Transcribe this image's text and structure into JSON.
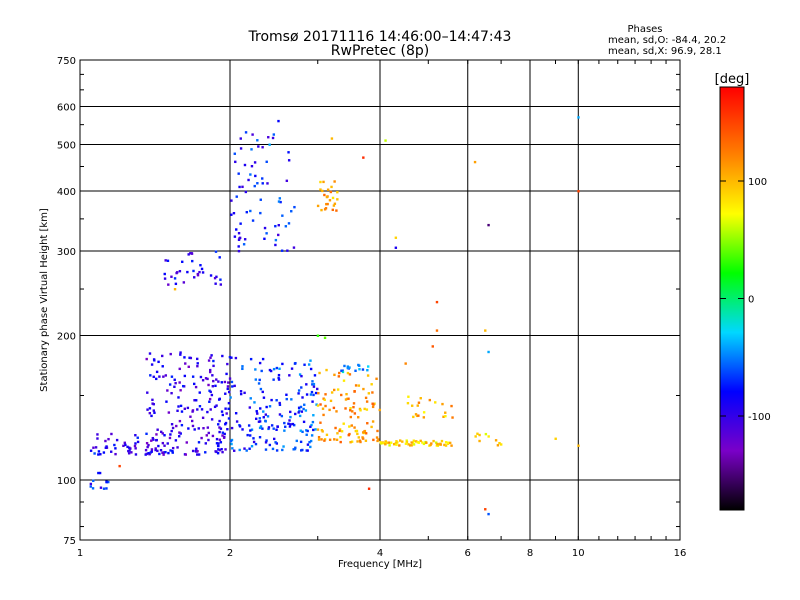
{
  "chart_data": {
    "type": "scatter",
    "title": "Tromsø 20171116 14:46:00–14:47:43",
    "subtitle": "RwPretec (8p)",
    "xlabel": "Frequency [MHz]",
    "ylabel": "Stationary phase Virtual Height [km]",
    "x_scale": "log",
    "y_scale": "log",
    "xlim": [
      1,
      16
    ],
    "ylim": [
      75,
      750
    ],
    "x_ticks": [
      1,
      2,
      4,
      6,
      8,
      10,
      16
    ],
    "x_tick_labels": [
      "1",
      "2",
      "4",
      "6",
      "8",
      "10",
      "16"
    ],
    "y_ticks": [
      75,
      100,
      200,
      300,
      400,
      500,
      600,
      750
    ],
    "y_tick_labels": [
      "75",
      "100",
      "200",
      "300",
      "400",
      "500",
      "600",
      "750"
    ],
    "grid": true,
    "stats": {
      "heading": "Phases",
      "line_o": "mean, sd,O: -84.4, 20.2",
      "line_x": "mean, sd,X:  96.9, 28.1"
    },
    "colorbar": {
      "unit": "[deg]",
      "range": [
        -180,
        180
      ],
      "tick_values": [
        100,
        0,
        -100
      ],
      "tick_labels": [
        "100",
        "0",
        "-100"
      ]
    },
    "clusters": [
      {
        "x": [
          1.05,
          1.15
        ],
        "y": [
          96,
          104
        ],
        "phase": -80,
        "n": 12
      },
      {
        "x": [
          1.05,
          1.4
        ],
        "y": [
          113,
          125
        ],
        "phase": -90,
        "n": 45
      },
      {
        "x": [
          1.35,
          2.0
        ],
        "y": [
          113,
          185
        ],
        "phase": -100,
        "n": 220
      },
      {
        "x": [
          1.45,
          1.95
        ],
        "y": [
          255,
          300
        ],
        "phase": -95,
        "n": 35
      },
      {
        "x": [
          2.0,
          2.7
        ],
        "y": [
          300,
          540
        ],
        "phase": -80,
        "n": 70
      },
      {
        "x": [
          2.0,
          3.0
        ],
        "y": [
          115,
          180
        ],
        "phase": -70,
        "n": 180
      },
      {
        "x": [
          3.0,
          3.3
        ],
        "y": [
          360,
          420
        ],
        "phase": 105,
        "n": 25
      },
      {
        "x": [
          3.0,
          4.0
        ],
        "y": [
          120,
          170
        ],
        "phase": 110,
        "n": 110
      },
      {
        "x": [
          3.3,
          3.8
        ],
        "y": [
          168,
          174
        ],
        "phase": -45,
        "n": 15
      },
      {
        "x": [
          4.0,
          5.6
        ],
        "y": [
          118,
          121
        ],
        "phase": 90,
        "n": 60
      },
      {
        "x": [
          4.5,
          5.6
        ],
        "y": [
          135,
          150
        ],
        "phase": 100,
        "n": 20
      },
      {
        "x": [
          6.2,
          7.0
        ],
        "y": [
          118,
          125
        ],
        "phase": 90,
        "n": 10
      }
    ],
    "points": [
      {
        "x": 1.2,
        "y": 107,
        "phase": 150
      },
      {
        "x": 3.8,
        "y": 96,
        "phase": 160
      },
      {
        "x": 5.2,
        "y": 235,
        "phase": 150
      },
      {
        "x": 5.2,
        "y": 205,
        "phase": 130
      },
      {
        "x": 6.5,
        "y": 205,
        "phase": 100
      },
      {
        "x": 6.6,
        "y": 185,
        "phase": -40
      },
      {
        "x": 6.6,
        "y": 340,
        "phase": -150
      },
      {
        "x": 6.2,
        "y": 460,
        "phase": 110
      },
      {
        "x": 10.0,
        "y": 570,
        "phase": -40
      },
      {
        "x": 10.0,
        "y": 400,
        "phase": 150
      },
      {
        "x": 10.0,
        "y": 118,
        "phase": 100
      },
      {
        "x": 9.0,
        "y": 122,
        "phase": 90
      },
      {
        "x": 6.5,
        "y": 87,
        "phase": 150
      },
      {
        "x": 6.6,
        "y": 85,
        "phase": -60
      },
      {
        "x": 4.1,
        "y": 510,
        "phase": 60
      },
      {
        "x": 4.3,
        "y": 320,
        "phase": 90
      },
      {
        "x": 4.3,
        "y": 305,
        "phase": -90
      },
      {
        "x": 3.2,
        "y": 515,
        "phase": 100
      },
      {
        "x": 3.7,
        "y": 470,
        "phase": 160
      },
      {
        "x": 2.5,
        "y": 560,
        "phase": -80
      },
      {
        "x": 2.1,
        "y": 515,
        "phase": -100
      },
      {
        "x": 2.4,
        "y": 500,
        "phase": -40
      },
      {
        "x": 3.0,
        "y": 200,
        "phase": 30
      },
      {
        "x": 3.1,
        "y": 198,
        "phase": 40
      },
      {
        "x": 4.5,
        "y": 175,
        "phase": 120
      },
      {
        "x": 5.1,
        "y": 190,
        "phase": 140
      },
      {
        "x": 1.55,
        "y": 250,
        "phase": 100
      }
    ]
  }
}
